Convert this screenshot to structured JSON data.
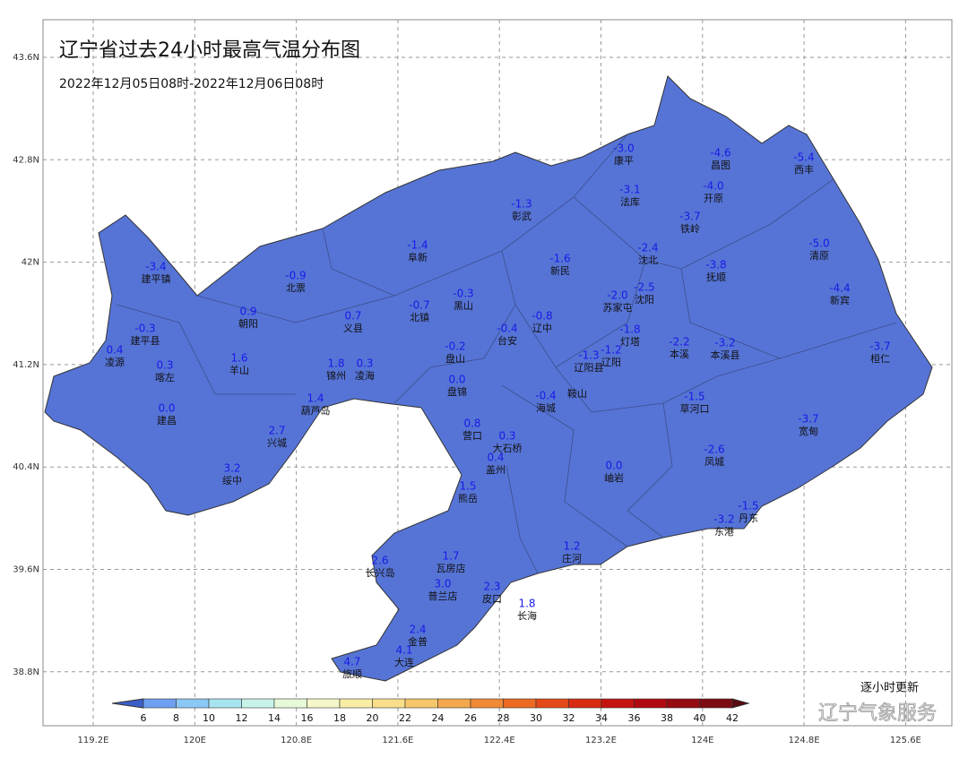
{
  "title": "辽宁省过去24小时最高气温分布图",
  "subtitle": "2022年12月05日08时-2022年12月06日08时",
  "note": "逐小时更新",
  "watermark": "辽宁气象服务",
  "lat_labels": [
    "43.6N",
    "42.8N",
    "42N",
    "41.2N",
    "40.4N",
    "39.6N",
    "38.8N"
  ],
  "lon_labels": [
    "119.2E",
    "120E",
    "120.8E",
    "121.6E",
    "122.4E",
    "123.2E",
    "124E",
    "124.8E",
    "125.6E"
  ],
  "map_color": "#5674d6",
  "colorbar": {
    "ticks": [
      6,
      8,
      10,
      12,
      14,
      16,
      18,
      20,
      22,
      24,
      26,
      28,
      30,
      32,
      34,
      36,
      38,
      40,
      42
    ],
    "colors": [
      "#3a5fc8",
      "#6f9ff0",
      "#8cc8f5",
      "#a8e4ef",
      "#c8f3e8",
      "#e6f9d8",
      "#f6f7c8",
      "#f9eda6",
      "#f8de8a",
      "#f6c66a",
      "#f3a84e",
      "#f08a35",
      "#ec6a22",
      "#e44a18",
      "#d82c12",
      "#c51410",
      "#b00a10",
      "#960a12",
      "#7c0a12",
      "#5a0a10"
    ]
  },
  "stations": [
    {
      "name": "康平",
      "value": "-3.0"
    },
    {
      "name": "昌图",
      "value": "-4.6"
    },
    {
      "name": "西丰",
      "value": "-5.4"
    },
    {
      "name": "法库",
      "value": "-3.1"
    },
    {
      "name": "开原",
      "value": "-4.0"
    },
    {
      "name": "彰武",
      "value": "-1.3"
    },
    {
      "name": "铁岭",
      "value": "-3.7"
    },
    {
      "name": "阜新",
      "value": "-1.4"
    },
    {
      "name": "沈北",
      "value": "-2.4"
    },
    {
      "name": "清原",
      "value": "-5.0"
    },
    {
      "name": "新民",
      "value": "-1.6"
    },
    {
      "name": "抚顺",
      "value": "-3.8"
    },
    {
      "name": "建平镇",
      "value": "-3.4"
    },
    {
      "name": "北票",
      "value": "-0.9"
    },
    {
      "name": "新宾",
      "value": "-4.4"
    },
    {
      "name": "沈阳",
      "value": "-2.5"
    },
    {
      "name": "苏家屯",
      "value": "-2.0"
    },
    {
      "name": "黑山",
      "value": "-0.3"
    },
    {
      "name": "北镇",
      "value": "-0.7"
    },
    {
      "name": "朝阳",
      "value": "0.9"
    },
    {
      "name": "义县",
      "value": "0.7"
    },
    {
      "name": "辽中",
      "value": "-0.8"
    },
    {
      "name": "台安",
      "value": "-0.4"
    },
    {
      "name": "建平县",
      "value": "-0.3"
    },
    {
      "name": "灯塔",
      "value": "-1.8"
    },
    {
      "name": "本溪",
      "value": "-2.2"
    },
    {
      "name": "本溪县",
      "value": "-3.2"
    },
    {
      "name": "桓仁",
      "value": "-3.7"
    },
    {
      "name": "盘山",
      "value": "-0.2"
    },
    {
      "name": "凌源",
      "value": "0.4"
    },
    {
      "name": "辽阳",
      "value": "-1.2"
    },
    {
      "name": "辽阳县",
      "value": "-1.3"
    },
    {
      "name": "羊山",
      "value": "1.6"
    },
    {
      "name": "锦州",
      "value": "1.8"
    },
    {
      "name": "凌海",
      "value": "0.3"
    },
    {
      "name": "喀左",
      "value": "0.3"
    },
    {
      "name": "盘锦",
      "value": "0.0"
    },
    {
      "name": "鞍山"
    },
    {
      "name": "海城",
      "value": "-0.4"
    },
    {
      "name": "葫芦岛",
      "value": "1.4"
    },
    {
      "name": "草河口",
      "value": "-1.5"
    },
    {
      "name": "建昌",
      "value": "0.0"
    },
    {
      "name": "营口",
      "value": "0.8"
    },
    {
      "name": "兴城",
      "value": "2.7"
    },
    {
      "name": "宽甸",
      "value": "-3.7"
    },
    {
      "name": "大石桥",
      "value": "0.3"
    },
    {
      "name": "盖州",
      "value": "0.4"
    },
    {
      "name": "凤城",
      "value": "-2.6"
    },
    {
      "name": "绥中",
      "value": "3.2"
    },
    {
      "name": "岫岩",
      "value": "0.0"
    },
    {
      "name": "熊岳",
      "value": "1.5"
    },
    {
      "name": "丹东",
      "value": "-1.5"
    },
    {
      "name": "东港",
      "value": "-3.2"
    },
    {
      "name": "庄河",
      "value": "1.2"
    },
    {
      "name": "瓦房店",
      "value": "1.7"
    },
    {
      "name": "长兴岛",
      "value": "2.6"
    },
    {
      "name": "普兰店",
      "value": "3.0"
    },
    {
      "name": "皮口",
      "value": "2.3"
    },
    {
      "name": "长海",
      "value": "1.8"
    },
    {
      "name": "金普",
      "value": "2.4"
    },
    {
      "name": "大连",
      "value": "4.1"
    },
    {
      "name": "旅顺",
      "value": "4.7"
    }
  ]
}
